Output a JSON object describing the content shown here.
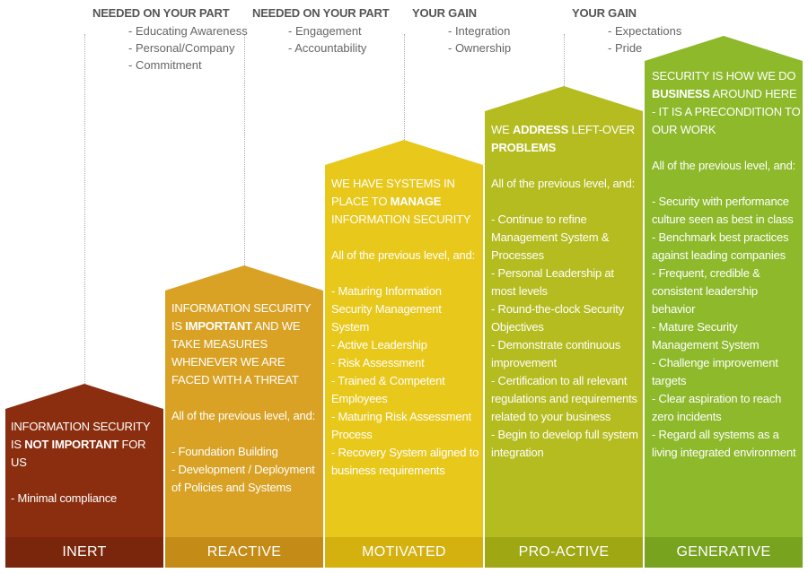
{
  "headers": [
    {
      "title": "NEEDED ON YOUR PART",
      "items": [
        "- Educating Awareness",
        "- Personal/Company",
        "- Commitment"
      ]
    },
    {
      "title": "NEEDED ON YOUR PART",
      "items": [
        "- Engagement",
        "- Accountability"
      ]
    },
    {
      "title": "YOUR GAIN",
      "items": [
        "- Integration",
        "- Ownership"
      ]
    },
    {
      "title": "YOUR GAIN",
      "items": [
        "- Expectations",
        "- Pride"
      ]
    }
  ],
  "levels": [
    {
      "label": "INERT",
      "color": "#8B2E0F",
      "band_color": "#7A260C",
      "title_pre": "INFORMATION SECURITY IS ",
      "title_bold": "NOT IMPORTANT",
      "title_post": " FOR US",
      "intro": "",
      "items": [
        "- Minimal compliance"
      ]
    },
    {
      "label": "REACTIVE",
      "color": "#D9A225",
      "band_color": "#C48C16",
      "title_pre": "INFORMATION SECURITY IS ",
      "title_bold": "IMPORTANT",
      "title_post": " AND WE TAKE MEASURES WHENEVER WE ARE FACED WITH A THREAT",
      "intro": "All of the previous level, and:",
      "items": [
        "- Foundation Building",
        "- Development / Deployment of Policies and Systems"
      ]
    },
    {
      "label": "MOTIVATED",
      "color": "#E9C81C",
      "band_color": "#D4B10F",
      "title_pre": "WE HAVE SYSTEMS IN PLACE TO ",
      "title_bold": "MANAGE",
      "title_post": " INFORMATION SECURITY",
      "intro": "All of the previous level, and:",
      "items": [
        "- Maturing Information Security Management System",
        "- Active Leadership",
        "- Risk Assessment",
        "- Trained & Competent Employees",
        "- Maturing Risk Assessment Process",
        "- Recovery System aligned to business requirements"
      ]
    },
    {
      "label": "PRO-ACTIVE",
      "color": "#B5BC1F",
      "band_color": "#9FA712",
      "title_pre": "WE ",
      "title_bold": "ADDRESS",
      "title_post": " LEFT-OVER ",
      "title_bold2": "PROBLEMS",
      "intro": "All of the previous level, and:",
      "items": [
        "- Continue to refine Management System & Processes",
        "- Personal Leadership at most levels",
        "- Round-the-clock Security Objectives",
        "- Demonstrate continuous improvement",
        "- Certification to all relevant regulations and requirements related to your business",
        "- Begin to develop full system integration"
      ]
    },
    {
      "label": "GENERATIVE",
      "color": "#8DB92B",
      "band_color": "#78A31E",
      "title_pre": "SECURITY IS HOW WE DO ",
      "title_bold": "BUSINESS",
      "title_post": " AROUND HERE - IT IS A PRECONDITION TO OUR WORK",
      "intro": "All of the previous level, and:",
      "items": [
        "- Security with performance culture seen as best in class",
        "- Benchmark best practices against leading companies",
        "- Frequent, credible & consistent leadership behavior",
        "- Mature Security Management System",
        "- Challenge improvement targets",
        "- Clear aspiration to reach zero incidents",
        "- Regard all systems as a living integrated environment"
      ]
    }
  ]
}
